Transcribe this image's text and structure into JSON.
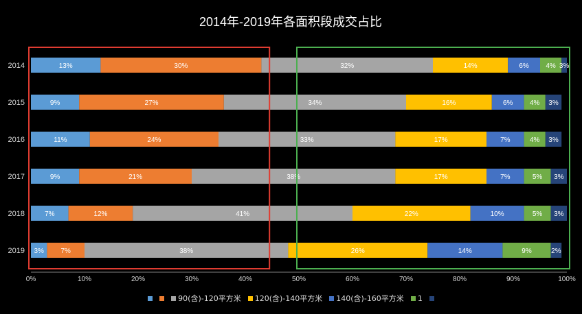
{
  "chart_data": {
    "type": "bar",
    "orientation": "horizontal",
    "stacked": "percent",
    "title": "2014年-2019年各面积段成交占比",
    "categories": [
      "2014",
      "2015",
      "2016",
      "2017",
      "2018",
      "2019"
    ],
    "xlim": [
      0,
      100
    ],
    "x_ticks": [
      "0%",
      "10%",
      "20%",
      "30%",
      "40%",
      "50%",
      "60%",
      "70%",
      "80%",
      "90%",
      "100%"
    ],
    "grid": false,
    "legend_position": "bottom",
    "series": [
      {
        "values": [
          13,
          9,
          11,
          9,
          7,
          3
        ],
        "labels": [
          "13%",
          "9%",
          "11%",
          "9%",
          "7%",
          "3%"
        ],
        "color": "#5B9BD5"
      },
      {
        "values": [
          30,
          27,
          24,
          21,
          12,
          7
        ],
        "labels": [
          "30%",
          "27%",
          "24%",
          "21%",
          "12%",
          "7%"
        ],
        "color": "#ED7D31"
      },
      {
        "name": "90(含)-120平方米",
        "values": [
          32,
          34,
          33,
          38,
          41,
          38
        ],
        "labels": [
          "32%",
          "34%",
          "33%",
          "38%",
          "41%",
          "38%"
        ],
        "color": "#A5A5A5"
      },
      {
        "name": "120(含)-140平方米",
        "values": [
          14,
          16,
          17,
          17,
          22,
          26
        ],
        "labels": [
          "14%",
          "16%",
          "17%",
          "17%",
          "22%",
          "26%"
        ],
        "color": "#FFC000"
      },
      {
        "name": "140(含)-160平方米",
        "values": [
          6,
          6,
          7,
          7,
          10,
          14
        ],
        "labels": [
          "6%",
          "6%",
          "7%",
          "7%",
          "10%",
          "14%"
        ],
        "color": "#4472C4"
      },
      {
        "name": "1",
        "values": [
          4,
          4,
          4,
          5,
          5,
          9
        ],
        "labels": [
          "4%",
          "4%",
          "4%",
          "5%",
          "5%",
          "9%"
        ],
        "color": "#70AD47"
      },
      {
        "values": [
          3,
          3,
          3,
          3,
          3,
          2
        ],
        "labels": [
          "3%",
          "3%",
          "3%",
          "3%",
          "3%",
          "2%"
        ],
        "color": "#264478"
      }
    ],
    "annotations": [
      {
        "type": "box",
        "color": "#E03C31",
        "x_range": [
          0,
          44
        ],
        "years": [
          "2014",
          "2019"
        ]
      },
      {
        "type": "box",
        "color": "#4CAF50",
        "x_range": [
          50,
          100
        ],
        "years": [
          "2014",
          "2019"
        ]
      }
    ]
  }
}
